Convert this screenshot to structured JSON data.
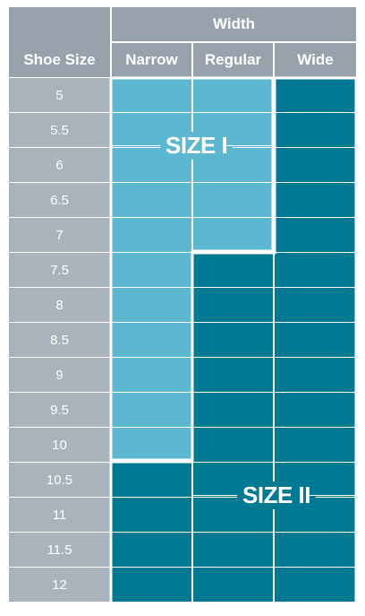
{
  "header": {
    "size_column": "Shoe Size",
    "width_group": "Width",
    "widths": [
      "Narrow",
      "Regular",
      "Wide"
    ]
  },
  "sizes": [
    "5",
    "5.5",
    "6",
    "6.5",
    "7",
    "7.5",
    "8",
    "8.5",
    "9",
    "9.5",
    "10",
    "10.5",
    "11",
    "11.5",
    "12"
  ],
  "regions": {
    "size1_label": "SIZE I",
    "size2_label": "SIZE II"
  },
  "grid": [
    [
      "I",
      "I",
      "II"
    ],
    [
      "I",
      "I",
      "II"
    ],
    [
      "I",
      "I",
      "II"
    ],
    [
      "I",
      "I",
      "II"
    ],
    [
      "I",
      "I",
      "II"
    ],
    [
      "I",
      "II",
      "II"
    ],
    [
      "I",
      "II",
      "II"
    ],
    [
      "I",
      "II",
      "II"
    ],
    [
      "I",
      "II",
      "II"
    ],
    [
      "I",
      "II",
      "II"
    ],
    [
      "I",
      "II",
      "II"
    ],
    [
      "II",
      "II",
      "II"
    ],
    [
      "II",
      "II",
      "II"
    ],
    [
      "II",
      "II",
      "II"
    ],
    [
      "II",
      "II",
      "II"
    ]
  ],
  "colors": {
    "size1": "#5bb8d0",
    "size2": "#007a93",
    "header": "#97a2ac",
    "size_column": "#a9b3bb"
  }
}
